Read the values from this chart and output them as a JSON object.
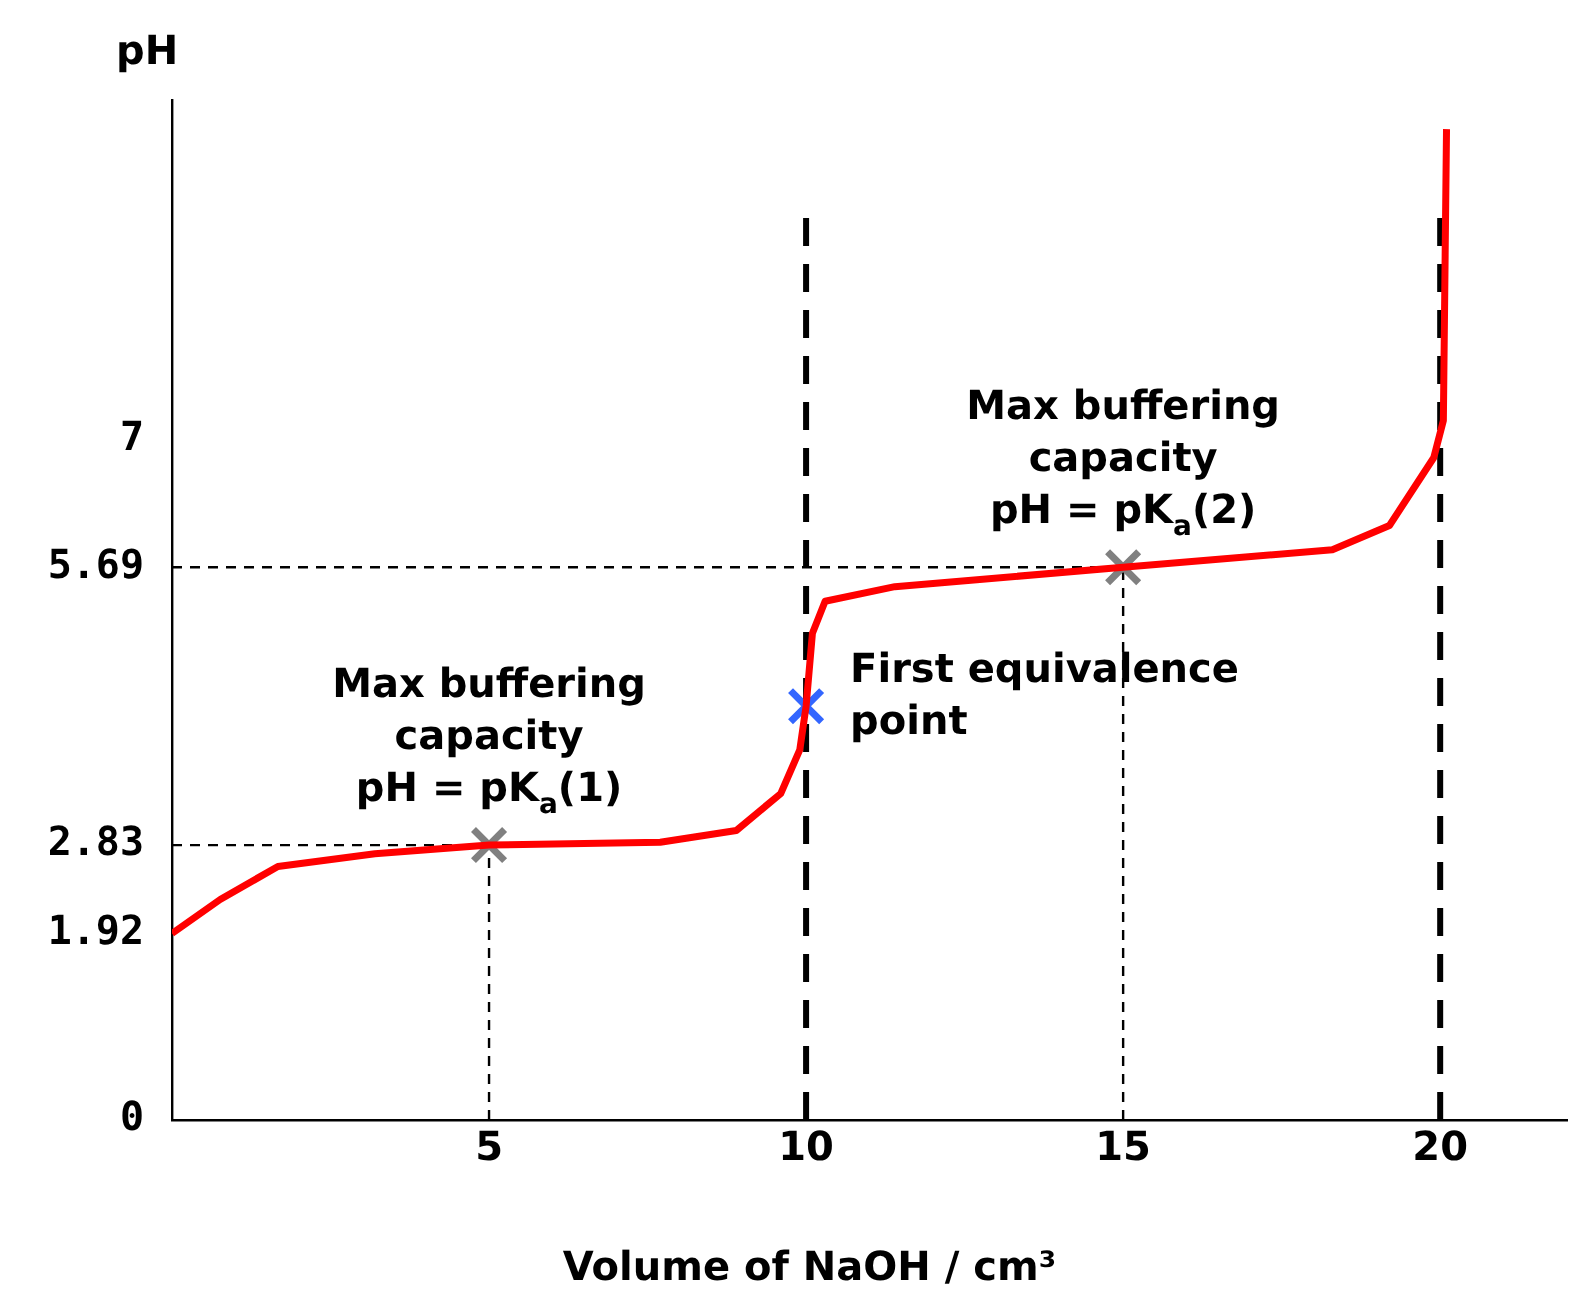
{
  "chart_data": {
    "type": "line",
    "xlabel": "Volume of NaOH / cm³",
    "ylabel": "pH",
    "xlim": [
      0,
      22
    ],
    "xticks": [
      5,
      10,
      15,
      20
    ],
    "ylim": [
      0,
      10.5
    ],
    "yticks": [
      0,
      1.92,
      2.83,
      5.69,
      7
    ],
    "grid": false,
    "legend": false,
    "marker": "none",
    "line_style": "solid",
    "series": [
      {
        "color": "#ff0000",
        "x": [
          0,
          0.76,
          1.67,
          3.2,
          5,
          7.7,
          8.9,
          9.6,
          9.9,
          10,
          10.1,
          10.3,
          11.4,
          15,
          18.3,
          19.2,
          19.9,
          20.05,
          20.1
        ],
        "values": [
          1.92,
          2.27,
          2.61,
          2.74,
          2.83,
          2.86,
          2.98,
          3.36,
          3.81,
          4.26,
          5.01,
          5.34,
          5.49,
          5.69,
          5.87,
          6.12,
          6.82,
          7.2,
          10.2
        ]
      },
      {
        "type": "scatter",
        "marker": "cross",
        "x": [
          5,
          10,
          15
        ],
        "values": [
          2.83,
          4.26,
          5.69
        ],
        "colors": [
          "#808080",
          "#3366ff",
          "#808080"
        ]
      }
    ],
    "ref_lines": [
      {
        "axis": "x",
        "value": 10,
        "line_style": "dashed",
        "color": "#000000"
      },
      {
        "axis": "x",
        "value": 20,
        "line_style": "dashed",
        "color": "#000000"
      },
      {
        "axis": "x",
        "value": 5,
        "line_style": "dotted",
        "color": "#000000"
      },
      {
        "axis": "x",
        "value": 15,
        "line_style": "dotted",
        "color": "#000000"
      },
      {
        "axis": "y",
        "value": 2.83,
        "line_style": "dotted",
        "color": "#000000"
      },
      {
        "axis": "y",
        "value": 5.69,
        "line_style": "dotted",
        "color": "#000000"
      }
    ],
    "annotations": [
      {
        "text": "Max buffering\ncapacity\npH = pK$_{a}$(1)",
        "x": 5,
        "y": 2.83
      },
      {
        "text": "First equivalence\npoint",
        "x": 10,
        "y": 4.26
      },
      {
        "text": "Max buffering\ncapacity\npH = pK$_{a}$(2)",
        "x": 15,
        "y": 5.69
      }
    ]
  }
}
